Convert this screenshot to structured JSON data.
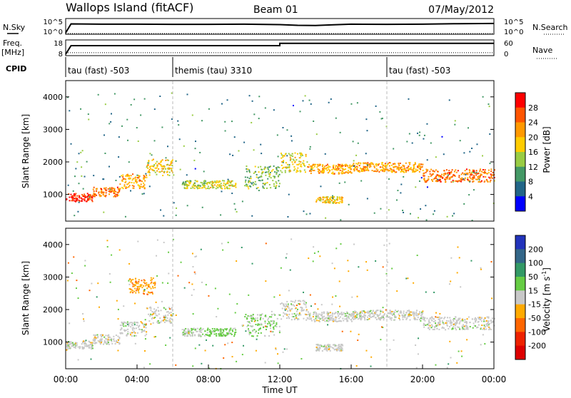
{
  "header": {
    "station": "Wallops Island (fitACF)",
    "beam": "Beam 01",
    "date": "07/May/2012"
  },
  "labels": {
    "nsky": "N.Sky",
    "nsearch": "N.Search",
    "freq": "Freq.",
    "freq_unit": "[MHz]",
    "nave": "Nave",
    "cpid": "CPID",
    "time_axis": "Time UT",
    "slant_range": "Slant Range [km]",
    "power": "Power [dB]",
    "velocity_main": "Velocity [m s",
    "velocity_sup": "-1",
    "velocity_close": "]"
  },
  "noise_ticks": {
    "left_top": "10^5",
    "left_bottom": "10^0",
    "right_top": "10^5",
    "right_bottom": "10^0"
  },
  "freq_ticks": {
    "left_top": "18",
    "left_bottom": "8",
    "right_top": "60",
    "right_bottom": "0"
  },
  "cpid_segments": [
    {
      "label": "tau (fast) -503",
      "start_hour": 0
    },
    {
      "label": "themis (tau) 3310",
      "start_hour": 6
    },
    {
      "label": "tau (fast) -503",
      "start_hour": 18
    }
  ],
  "time_ticks": [
    "00:00",
    "04:00",
    "08:00",
    "12:00",
    "16:00",
    "20:00",
    "00:00"
  ],
  "range_ticks": [
    "1000",
    "2000",
    "3000",
    "4000"
  ],
  "power_scale": {
    "ticks": [
      "28",
      "24",
      "20",
      "16",
      "12",
      "8",
      "4"
    ],
    "colors": [
      "#ff0000",
      "#ff5500",
      "#ff9900",
      "#ffcc00",
      "#99cc44",
      "#449966",
      "#226688",
      "#0000ff"
    ]
  },
  "velocity_scale": {
    "ticks": [
      "200",
      "100",
      "50",
      "15",
      "-15",
      "-50",
      "-100",
      "-200"
    ],
    "colors": [
      "#2233bb",
      "#336688",
      "#339966",
      "#66cc44",
      "#c8c8c8",
      "#ffaa00",
      "#ff6600",
      "#ee2200",
      "#dd0000"
    ]
  },
  "chart_data": [
    {
      "type": "line",
      "title": "N.Sky / N.Search",
      "x_unit": "hour UT",
      "x": [
        0,
        0.3,
        2,
        4,
        6,
        8,
        10,
        12,
        13,
        14,
        15,
        16,
        18,
        20,
        22,
        24
      ],
      "sky_log10": [
        0,
        3.9,
        3.8,
        3.8,
        3.7,
        3.7,
        3.8,
        3.6,
        3.3,
        3.2,
        3.5,
        3.8,
        3.7,
        3.8,
        4.0,
        4.1
      ],
      "search_level": "dotted, near bottom",
      "ylim": [
        0,
        5
      ]
    },
    {
      "type": "line",
      "title": "Freq. / Nave",
      "x_unit": "hour UT",
      "freq_x": [
        0,
        0.3,
        12,
        12,
        24
      ],
      "freq_mhz": [
        8,
        15.5,
        15.5,
        17.5,
        17.5
      ],
      "nave_level": 8,
      "freq_ylim": [
        8,
        18
      ],
      "nave_ylim": [
        0,
        60
      ]
    },
    {
      "type": "heatmap",
      "title": "Power [dB]",
      "xlabel": "Time UT",
      "ylabel": "Slant Range [km]",
      "xlim": [
        0,
        24
      ],
      "ylim": [
        180,
        4500
      ],
      "zlim": [
        0,
        30
      ],
      "bands": [
        {
          "x0": 0.0,
          "x1": 1.5,
          "r0": 800,
          "r1": 1050,
          "p": 28
        },
        {
          "x0": 1.5,
          "x1": 3.0,
          "r0": 950,
          "r1": 1250,
          "p": 24
        },
        {
          "x0": 3.0,
          "x1": 4.5,
          "r0": 1200,
          "r1": 1650,
          "p": 20
        },
        {
          "x0": 4.5,
          "x1": 6.0,
          "r0": 1600,
          "r1": 2100,
          "p": 18
        },
        {
          "x0": 6.5,
          "x1": 8.0,
          "r0": 1200,
          "r1": 1450,
          "p": 14
        },
        {
          "x0": 8.0,
          "x1": 9.5,
          "r0": 1200,
          "r1": 1450,
          "p": 16
        },
        {
          "x0": 10.0,
          "x1": 12.0,
          "r0": 1200,
          "r1": 1900,
          "p": 12
        },
        {
          "x0": 12.0,
          "x1": 13.5,
          "r0": 1700,
          "r1": 2300,
          "p": 16
        },
        {
          "x0": 13.5,
          "x1": 16.0,
          "r0": 1650,
          "r1": 1950,
          "p": 20
        },
        {
          "x0": 14.0,
          "x1": 15.5,
          "r0": 750,
          "r1": 950,
          "p": 18
        },
        {
          "x0": 16.0,
          "x1": 20.0,
          "r0": 1700,
          "r1": 2000,
          "p": 20
        },
        {
          "x0": 20.0,
          "x1": 24.0,
          "r0": 1400,
          "r1": 1800,
          "p": 24
        }
      ]
    },
    {
      "type": "heatmap",
      "title": "Velocity [m s^-1]",
      "xlabel": "Time UT",
      "ylabel": "Slant Range [km]",
      "xlim": [
        0,
        24
      ],
      "ylim": [
        180,
        4500
      ],
      "zlim": [
        -200,
        200
      ],
      "bands": [
        {
          "x0": 0.0,
          "x1": 1.5,
          "r0": 800,
          "r1": 1050,
          "v": 0
        },
        {
          "x0": 1.5,
          "x1": 3.0,
          "r0": 950,
          "r1": 1250,
          "v": 0
        },
        {
          "x0": 3.0,
          "x1": 4.5,
          "r0": 1200,
          "r1": 1650,
          "v": 0
        },
        {
          "x0": 4.5,
          "x1": 6.0,
          "r0": 1600,
          "r1": 2100,
          "v": 0
        },
        {
          "x0": 3.5,
          "x1": 5.0,
          "r0": 2500,
          "r1": 3000,
          "v": -60
        },
        {
          "x0": 6.5,
          "x1": 8.0,
          "r0": 1200,
          "r1": 1450,
          "v": 20
        },
        {
          "x0": 8.0,
          "x1": 9.5,
          "r0": 1200,
          "r1": 1450,
          "v": 40
        },
        {
          "x0": 10.0,
          "x1": 12.0,
          "r0": 1200,
          "r1": 1900,
          "v": 30
        },
        {
          "x0": 12.0,
          "x1": 13.5,
          "r0": 1700,
          "r1": 2300,
          "v": 0
        },
        {
          "x0": 13.5,
          "x1": 16.0,
          "r0": 1650,
          "r1": 1950,
          "v": 0
        },
        {
          "x0": 14.0,
          "x1": 15.5,
          "r0": 750,
          "r1": 950,
          "v": 0
        },
        {
          "x0": 16.0,
          "x1": 20.0,
          "r0": 1700,
          "r1": 2000,
          "v": 0
        },
        {
          "x0": 20.0,
          "x1": 24.0,
          "r0": 1400,
          "r1": 1800,
          "v": 0
        }
      ]
    }
  ]
}
